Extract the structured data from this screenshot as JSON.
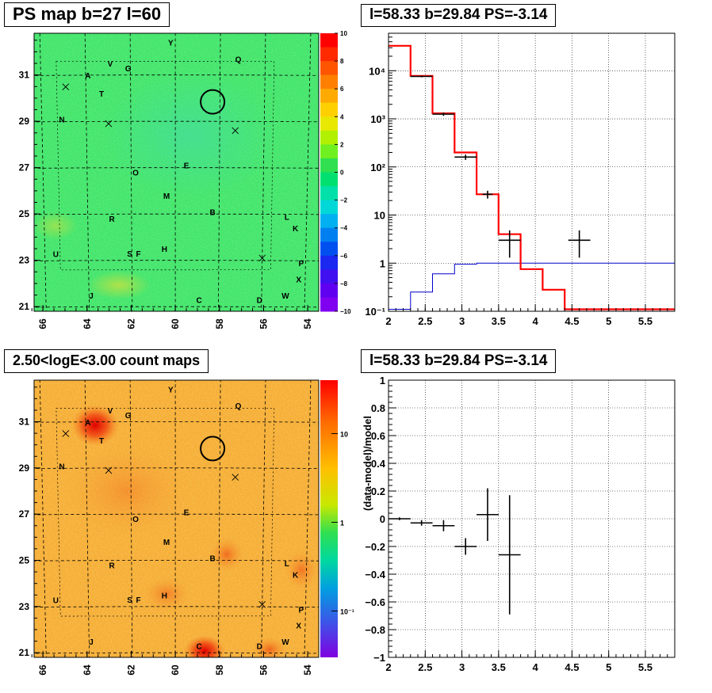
{
  "panels": {
    "ps_map_title": "PS map b=27 l=60",
    "spectrum_title": "l=58.33 b=29.84 PS=-3.14",
    "count_map_title": "2.50<logE<3.00 count maps",
    "residual_title": "l=58.33 b=29.84 PS=-3.14"
  },
  "colors": {
    "map_green": "#33e05a",
    "map_orange": "#f4a428",
    "model_red": "#ff0000",
    "bg_blue": "#0000cc",
    "data_black": "#000000"
  },
  "sky_maps": {
    "x_ticks": [
      "66",
      "64",
      "62",
      "60",
      "58",
      "56",
      "54"
    ],
    "y_ticks": [
      "31",
      "29",
      "27",
      "25",
      "23",
      "21"
    ],
    "x_tick_values": [
      66,
      64,
      62,
      60,
      58,
      56,
      54
    ],
    "y_tick_values": [
      31,
      29,
      27,
      25,
      23,
      21
    ],
    "xlim": [
      66.4,
      53.5
    ],
    "ylim": [
      20.8,
      32.8
    ],
    "sources": [
      {
        "label": "Y",
        "l": 60.2,
        "b": 32.4
      },
      {
        "label": "Q",
        "l": 57.2,
        "b": 31.7
      },
      {
        "label": "V",
        "l": 62.9,
        "b": 31.5
      },
      {
        "label": "G",
        "l": 62.1,
        "b": 31.3
      },
      {
        "label": "A",
        "l": 63.9,
        "b": 31.0
      },
      {
        "label": "T",
        "l": 63.3,
        "b": 30.2
      },
      {
        "label": "N",
        "l": 65.1,
        "b": 29.1
      },
      {
        "label": "E",
        "l": 59.5,
        "b": 27.1
      },
      {
        "label": "O",
        "l": 61.8,
        "b": 26.8
      },
      {
        "label": "M",
        "l": 60.4,
        "b": 25.8
      },
      {
        "label": "B",
        "l": 58.3,
        "b": 25.1
      },
      {
        "label": "R",
        "l": 62.9,
        "b": 24.8
      },
      {
        "label": "L",
        "l": 54.9,
        "b": 24.9
      },
      {
        "label": "K",
        "l": 54.5,
        "b": 24.4
      },
      {
        "label": "H",
        "l": 60.5,
        "b": 23.5
      },
      {
        "label": "S",
        "l": 62.1,
        "b": 23.3
      },
      {
        "label": "F",
        "l": 61.7,
        "b": 23.3
      },
      {
        "label": "U",
        "l": 65.5,
        "b": 23.3
      },
      {
        "label": "P",
        "l": 54.2,
        "b": 22.9
      },
      {
        "label": "X",
        "l": 54.3,
        "b": 22.2
      },
      {
        "label": "W",
        "l": 54.9,
        "b": 21.5
      },
      {
        "label": "J",
        "l": 63.9,
        "b": 21.5
      },
      {
        "label": "D",
        "l": 56.1,
        "b": 21.3
      },
      {
        "label": "C",
        "l": 58.9,
        "b": 21.3
      }
    ],
    "crosses": [
      {
        "l": 64.9,
        "b": 30.5
      },
      {
        "l": 63.0,
        "b": 28.9
      },
      {
        "l": 57.3,
        "b": 28.6
      },
      {
        "l": 56.0,
        "b": 23.1
      }
    ],
    "target": {
      "l": 58.33,
      "b": 29.84
    }
  },
  "ps_colorbar": {
    "ticks": [
      "10",
      "8",
      "6",
      "4",
      "2",
      "0",
      "−2",
      "−4",
      "−6",
      "−8",
      "−10"
    ],
    "range": [
      -10,
      10
    ]
  },
  "count_colorbar": {
    "ticks": [
      "10",
      "1",
      "10⁻¹"
    ],
    "tick_values": [
      10,
      1,
      0.1
    ],
    "range": [
      0.03,
      40
    ]
  },
  "chart_data": [
    {
      "type": "line",
      "panel": "spectrum",
      "title": "l=58.33 b=29.84 PS=-3.14",
      "x_ticks": [
        "2",
        "2.5",
        "3",
        "3.5",
        "4",
        "4.5",
        "5",
        "5.5"
      ],
      "y_ticks": [
        "10⁻¹",
        "1",
        "10",
        "10²",
        "10³",
        "10⁴"
      ],
      "y_tick_values": [
        0.1,
        1,
        10,
        100,
        1000,
        10000
      ],
      "xlim": [
        2,
        5.9
      ],
      "ylim": [
        0.1,
        60000
      ],
      "log_y": true,
      "grid": true,
      "bin_edges": [
        2.0,
        2.3,
        2.6,
        2.9,
        3.2,
        3.5,
        3.8,
        4.1,
        4.4,
        4.7,
        5.0,
        5.3,
        5.6,
        5.9
      ],
      "series": [
        {
          "role": "model",
          "values": [
            33000,
            7800,
            1300,
            200,
            27,
            4,
            0.75,
            0.28,
            0.11,
            0.11,
            0.11,
            0.11,
            0.11
          ]
        },
        {
          "role": "background",
          "values": [
            0.11,
            0.25,
            0.6,
            0.95,
            1,
            1,
            1,
            1,
            1,
            1,
            1,
            1,
            1
          ]
        },
        {
          "role": "data",
          "points": [
            {
              "x": 2.45,
              "y": 7600,
              "xerr": 0.15,
              "ylo": 7300,
              "yhi": 7900
            },
            {
              "x": 2.75,
              "y": 1250,
              "xerr": 0.15,
              "ylo": 1150,
              "yhi": 1350
            },
            {
              "x": 3.05,
              "y": 160,
              "xerr": 0.15,
              "ylo": 140,
              "yhi": 180
            },
            {
              "x": 3.35,
              "y": 27,
              "xerr": 0.07,
              "ylo": 22,
              "yhi": 32
            },
            {
              "x": 3.65,
              "y": 3,
              "xerr": 0.15,
              "ylo": 1.3,
              "yhi": 4.8
            },
            {
              "x": 4.6,
              "y": 3,
              "xerr": 0.15,
              "ylo": 1.3,
              "yhi": 4.8
            }
          ]
        }
      ]
    },
    {
      "type": "scatter",
      "panel": "residual",
      "title": "l=58.33 b=29.84 PS=-3.14",
      "ylabel": "(data-model)/model",
      "x_ticks": [
        "2",
        "2.5",
        "3",
        "3.5",
        "4",
        "4.5",
        "5",
        "5.5"
      ],
      "y_ticks": [
        "1",
        "0.8",
        "0.6",
        "0.4",
        "0.2",
        "0",
        "−0.2",
        "−0.4",
        "−0.6",
        "−0.8",
        "−1"
      ],
      "xlim": [
        2,
        5.9
      ],
      "ylim": [
        -1,
        1
      ],
      "grid": true,
      "points": [
        {
          "x": 2.15,
          "y": 0.0,
          "xerr": 0.15,
          "yerr": 0.01
        },
        {
          "x": 2.45,
          "y": -0.03,
          "xerr": 0.15,
          "yerr": 0.02
        },
        {
          "x": 2.75,
          "y": -0.05,
          "xerr": 0.15,
          "yerr": 0.04
        },
        {
          "x": 3.05,
          "y": -0.2,
          "xerr": 0.15,
          "yerr": 0.06
        },
        {
          "x": 3.35,
          "y": 0.03,
          "xerr": 0.15,
          "yerr": 0.19
        },
        {
          "x": 3.65,
          "y": -0.26,
          "xerr": 0.15,
          "yerr": 0.43
        }
      ]
    }
  ]
}
